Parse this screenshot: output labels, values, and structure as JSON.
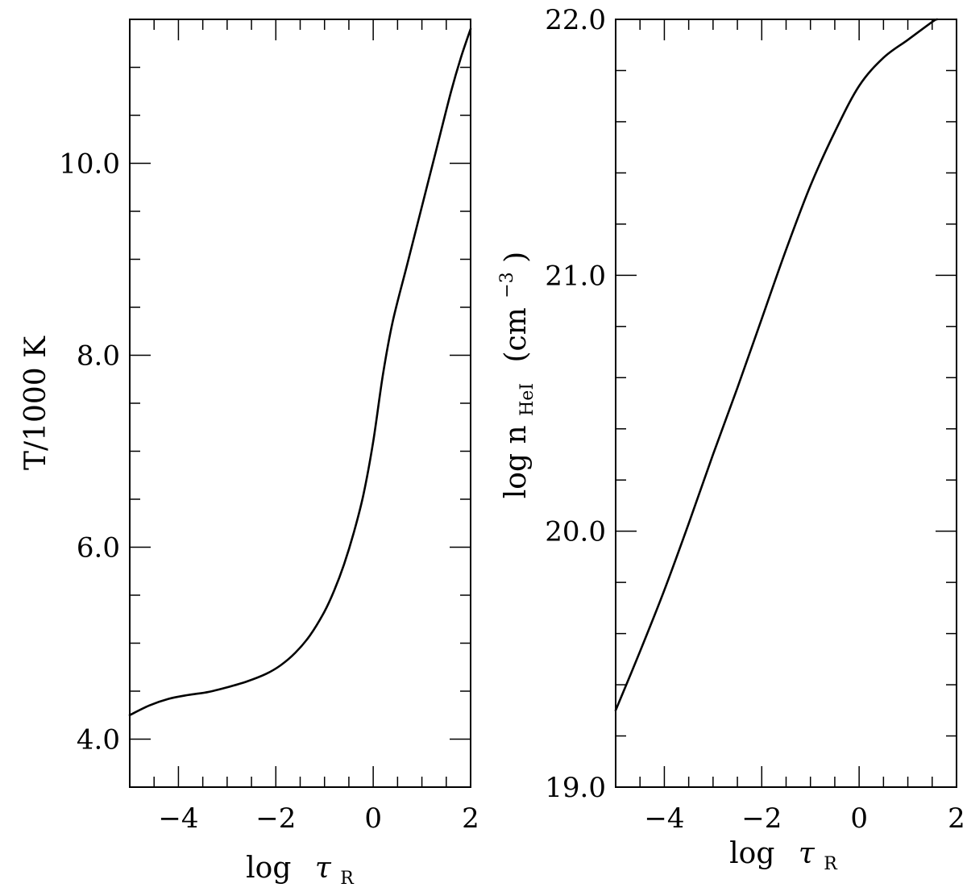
{
  "chart_data": [
    {
      "type": "line",
      "xlim": [
        -5,
        2
      ],
      "ylim": [
        3.5,
        11.5
      ],
      "xticks_major": [
        -4,
        -2,
        0,
        2
      ],
      "xtick_labels": [
        "−4",
        "−2",
        "0",
        "2"
      ],
      "yticks_major": [
        4,
        6,
        8,
        10
      ],
      "ytick_labels": [
        "4.0",
        "6.0",
        "8.0",
        "10.0"
      ],
      "xlabel_main": "log",
      "xlabel_tau": "τ",
      "xlabel_sub": "R",
      "ylabel": "T/1000 K",
      "grid": false,
      "series": [
        {
          "x": [
            -5.0,
            -4.6,
            -4.2,
            -3.8,
            -3.4,
            -3.0,
            -2.6,
            -2.2,
            -1.9,
            -1.6,
            -1.3,
            -1.0,
            -0.8,
            -0.6,
            -0.4,
            -0.2,
            0.0,
            0.2,
            0.4,
            0.7,
            1.0,
            1.3,
            1.6,
            1.8,
            2.0
          ],
          "y": [
            4.25,
            4.35,
            4.42,
            4.46,
            4.49,
            4.54,
            4.6,
            4.68,
            4.77,
            4.9,
            5.08,
            5.33,
            5.55,
            5.82,
            6.15,
            6.55,
            7.1,
            7.8,
            8.35,
            8.95,
            9.55,
            10.15,
            10.75,
            11.1,
            11.4
          ]
        }
      ]
    },
    {
      "type": "line",
      "xlim": [
        -5,
        2
      ],
      "ylim": [
        19.0,
        22.0
      ],
      "xticks_major": [
        -4,
        -2,
        0,
        2
      ],
      "xtick_labels": [
        "−4",
        "−2",
        "0",
        "2"
      ],
      "yticks_major": [
        19.0,
        20.0,
        21.0,
        22.0
      ],
      "ytick_labels": [
        "19.0",
        "20.0",
        "21.0",
        "22.0"
      ],
      "xlabel_main": "log",
      "xlabel_tau": "τ",
      "xlabel_sub": "R",
      "ylabel_main": "log n",
      "ylabel_sub": "HeI",
      "ylabel_unit": "(cm",
      "ylabel_sup": "−3",
      "ylabel_close": ")",
      "grid": false,
      "series": [
        {
          "x": [
            -5.0,
            -4.5,
            -4.0,
            -3.5,
            -3.0,
            -2.5,
            -2.0,
            -1.5,
            -1.0,
            -0.5,
            0.0,
            0.5,
            1.0,
            1.5,
            1.6
          ],
          "y": [
            19.3,
            19.53,
            19.77,
            20.03,
            20.3,
            20.56,
            20.83,
            21.1,
            21.35,
            21.56,
            21.74,
            21.85,
            21.92,
            21.99,
            22.0
          ]
        }
      ]
    }
  ]
}
